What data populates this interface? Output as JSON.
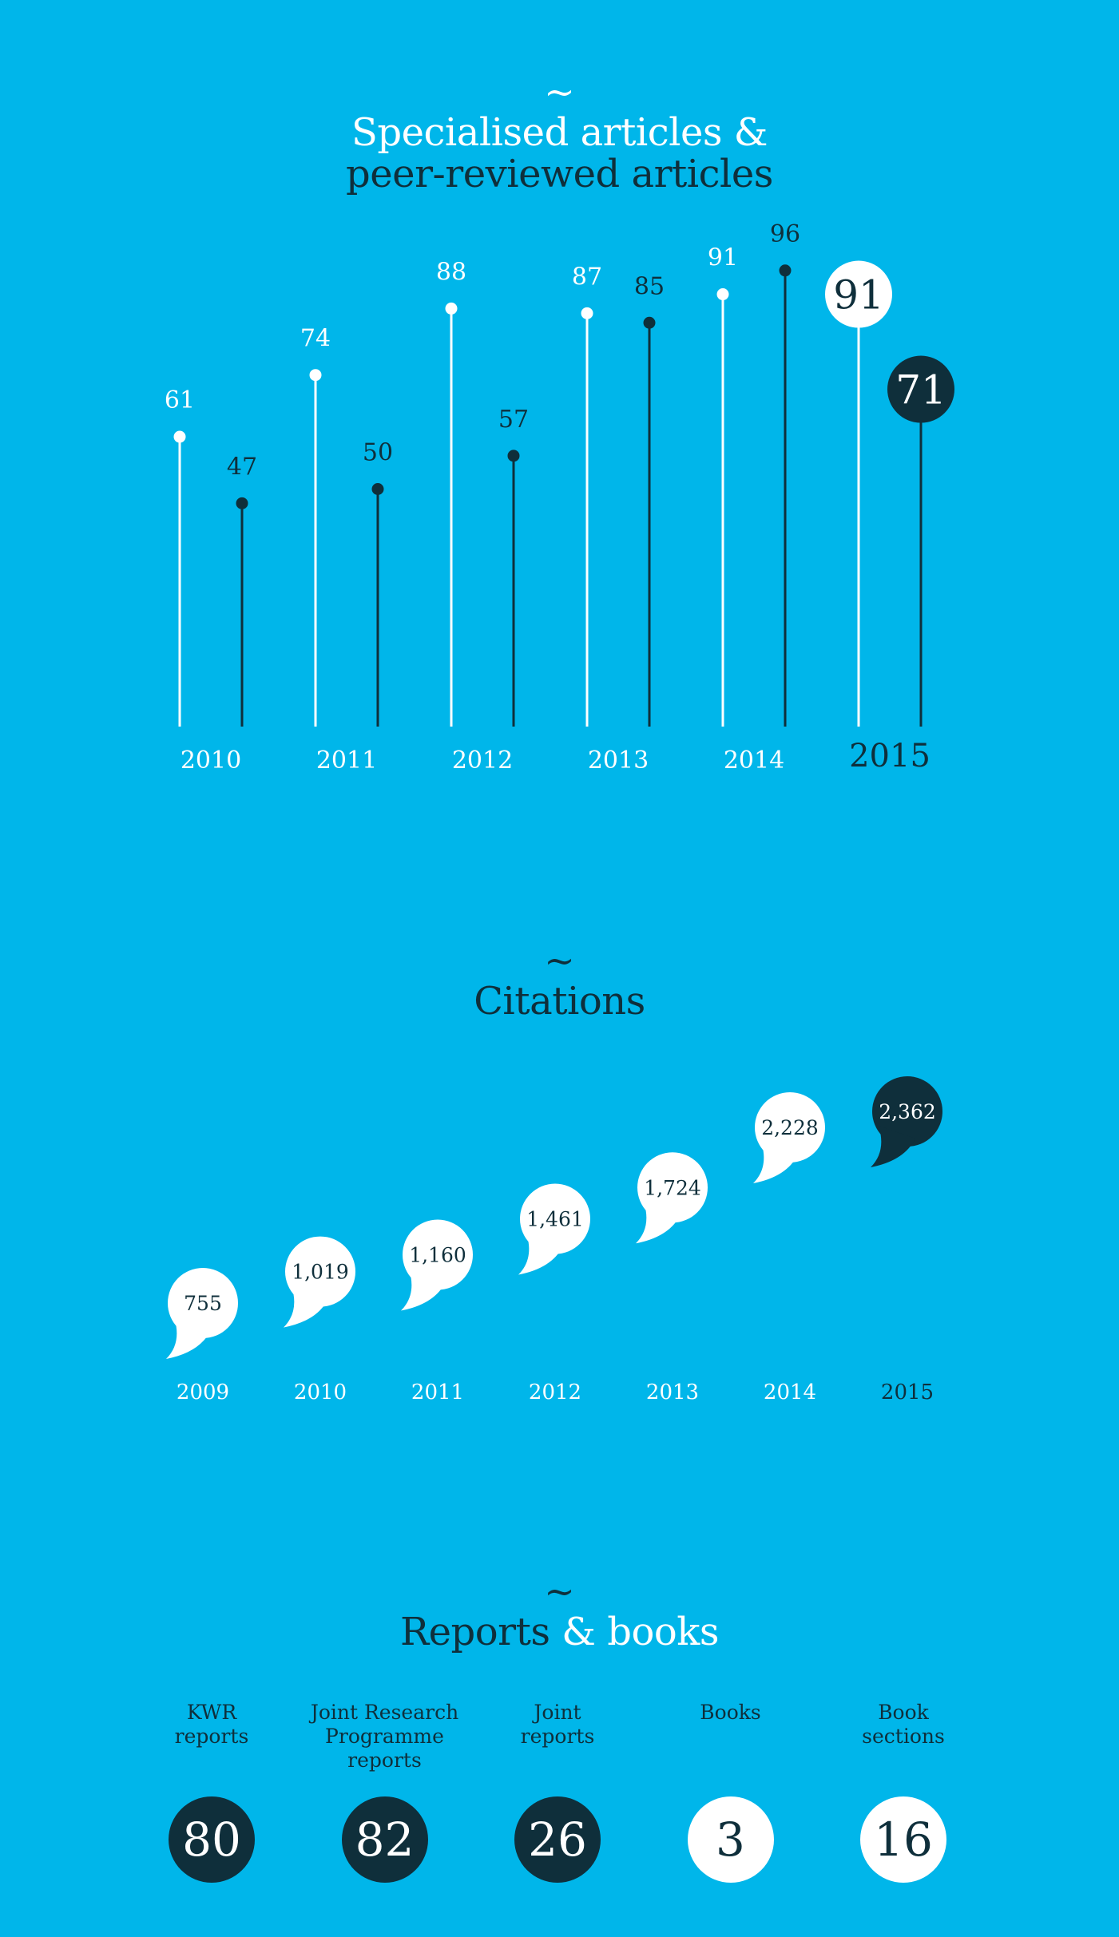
{
  "articles": {
    "title_line1": "Specialised articles &",
    "title_line2": "peer-reviewed articles",
    "tilde": "~"
  },
  "citations": {
    "title": "Citations",
    "tilde": "~"
  },
  "reports": {
    "title_main": "Reports",
    "title_amp_books": "& books",
    "tilde": "~",
    "items": [
      {
        "label_lines": [
          "KWR",
          "reports"
        ],
        "value": "80",
        "style": "dark"
      },
      {
        "label_lines": [
          "Joint Research",
          "Programme",
          "reports"
        ],
        "value": "82",
        "style": "dark"
      },
      {
        "label_lines": [
          "Joint",
          "reports"
        ],
        "value": "26",
        "style": "dark"
      },
      {
        "label_lines": [
          "Books"
        ],
        "value": "3",
        "style": "light"
      },
      {
        "label_lines": [
          "Book",
          "sections"
        ],
        "value": "16",
        "style": "light"
      }
    ]
  },
  "colors": {
    "background": "#00b6ea",
    "dark": "#0f2f3b",
    "light": "#ffffff"
  },
  "chart_data": [
    {
      "type": "lollipop",
      "title": "Specialised articles & peer-reviewed articles",
      "categories": [
        "2010",
        "2011",
        "2012",
        "2013",
        "2014",
        "2015"
      ],
      "series": [
        {
          "values": [
            61,
            74,
            88,
            87,
            91,
            91
          ],
          "color": "#ffffff"
        },
        {
          "values": [
            47,
            50,
            57,
            85,
            96,
            71
          ],
          "color": "#0f2f3b"
        }
      ],
      "ylim": [
        0,
        100
      ],
      "highlight_category": "2015",
      "grid": false
    },
    {
      "type": "scatter",
      "title": "Citations",
      "categories": [
        "2009",
        "2010",
        "2011",
        "2012",
        "2013",
        "2014",
        "2015"
      ],
      "values": [
        755,
        1019,
        1160,
        1461,
        1724,
        2228,
        2362
      ],
      "value_labels": [
        "755",
        "1,019",
        "1,160",
        "1,461",
        "1,724",
        "2,228",
        "2,362"
      ],
      "highlight_category": "2015",
      "grid": false
    }
  ]
}
